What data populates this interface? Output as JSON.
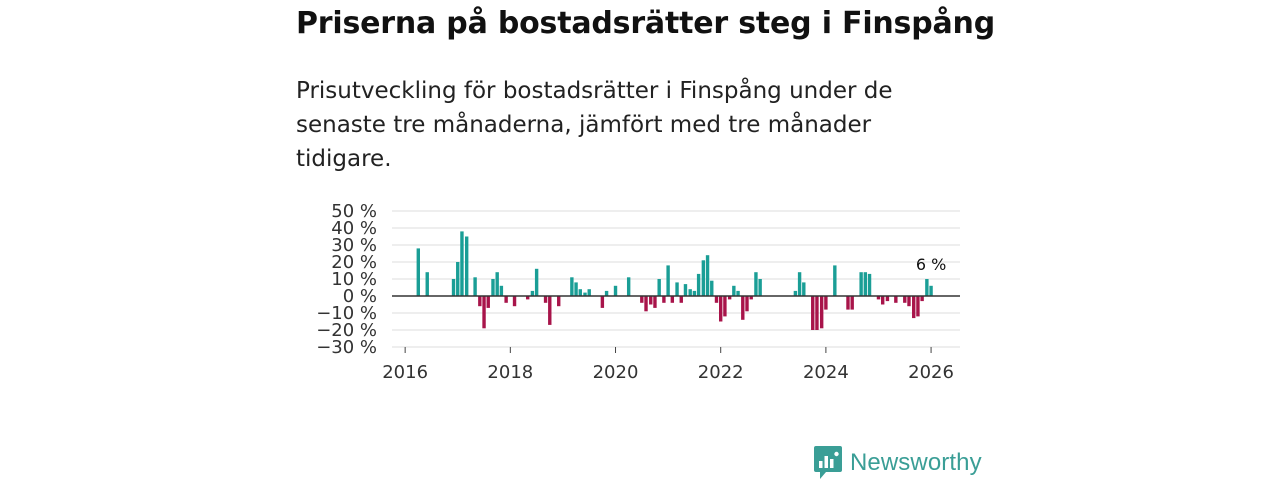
{
  "header": {
    "title": "Priserna på bostadsrätter steg i Finspång",
    "subtitle": "Prisutveckling för bostadsrätter i Finspång under de senaste tre månaderna, jämfört med tre månader tidigare."
  },
  "branding": {
    "logo_text": "Newsworthy",
    "logo_color": "#3a9e96"
  },
  "colors": {
    "positive": "#1a9e96",
    "negative": "#a8144a",
    "grid": "#dddddd",
    "zero_line": "#333333"
  },
  "chart_data": {
    "type": "bar",
    "title": "",
    "xlabel": "",
    "ylabel": "",
    "y_unit": " %",
    "ylim": [
      -30,
      50
    ],
    "y_ticks": [
      50,
      40,
      30,
      20,
      10,
      0,
      -10,
      -20,
      -30
    ],
    "y_tick_labels": [
      "50 %",
      "40 %",
      "30 %",
      "20 %",
      "10 %",
      "0 %",
      "−10 %",
      "−20 %",
      "−30 %"
    ],
    "x_ticks": [
      2016,
      2018,
      2020,
      2022,
      2024,
      2026
    ],
    "x_tick_labels": [
      "2016",
      "2018",
      "2020",
      "2022",
      "2024",
      "2026"
    ],
    "xlim": [
      2015.75,
      2026.55
    ],
    "series": [
      {
        "name": "Prisutveckling",
        "points": [
          {
            "x": 2016.25,
            "y": 28
          },
          {
            "x": 2016.42,
            "y": 14
          },
          {
            "x": 2016.92,
            "y": 10
          },
          {
            "x": 2017.0,
            "y": 20
          },
          {
            "x": 2017.08,
            "y": 38
          },
          {
            "x": 2017.17,
            "y": 35
          },
          {
            "x": 2017.33,
            "y": 11
          },
          {
            "x": 2017.42,
            "y": -6
          },
          {
            "x": 2017.5,
            "y": -19
          },
          {
            "x": 2017.58,
            "y": -7
          },
          {
            "x": 2017.67,
            "y": 10
          },
          {
            "x": 2017.75,
            "y": 14
          },
          {
            "x": 2017.83,
            "y": 6
          },
          {
            "x": 2017.92,
            "y": -4
          },
          {
            "x": 2018.08,
            "y": -6
          },
          {
            "x": 2018.33,
            "y": -2
          },
          {
            "x": 2018.42,
            "y": 3
          },
          {
            "x": 2018.5,
            "y": 16
          },
          {
            "x": 2018.67,
            "y": -4
          },
          {
            "x": 2018.75,
            "y": -17
          },
          {
            "x": 2018.92,
            "y": -6
          },
          {
            "x": 2019.17,
            "y": 11
          },
          {
            "x": 2019.25,
            "y": 8
          },
          {
            "x": 2019.33,
            "y": 4
          },
          {
            "x": 2019.42,
            "y": 2
          },
          {
            "x": 2019.5,
            "y": 4
          },
          {
            "x": 2019.75,
            "y": -7
          },
          {
            "x": 2019.83,
            "y": 3
          },
          {
            "x": 2020.0,
            "y": 6
          },
          {
            "x": 2020.25,
            "y": 11
          },
          {
            "x": 2020.5,
            "y": -4
          },
          {
            "x": 2020.58,
            "y": -9
          },
          {
            "x": 2020.67,
            "y": -5
          },
          {
            "x": 2020.75,
            "y": -7
          },
          {
            "x": 2020.83,
            "y": 10
          },
          {
            "x": 2020.92,
            "y": -4
          },
          {
            "x": 2021.0,
            "y": 18
          },
          {
            "x": 2021.08,
            "y": -4
          },
          {
            "x": 2021.17,
            "y": 8
          },
          {
            "x": 2021.25,
            "y": -4
          },
          {
            "x": 2021.33,
            "y": 7
          },
          {
            "x": 2021.42,
            "y": 4
          },
          {
            "x": 2021.5,
            "y": 3
          },
          {
            "x": 2021.58,
            "y": 13
          },
          {
            "x": 2021.67,
            "y": 21
          },
          {
            "x": 2021.75,
            "y": 24
          },
          {
            "x": 2021.83,
            "y": 9
          },
          {
            "x": 2021.92,
            "y": -4
          },
          {
            "x": 2022.0,
            "y": -15
          },
          {
            "x": 2022.08,
            "y": -12
          },
          {
            "x": 2022.17,
            "y": -2
          },
          {
            "x": 2022.25,
            "y": 6
          },
          {
            "x": 2022.33,
            "y": 3
          },
          {
            "x": 2022.42,
            "y": -14
          },
          {
            "x": 2022.5,
            "y": -9
          },
          {
            "x": 2022.58,
            "y": -2
          },
          {
            "x": 2022.67,
            "y": 14
          },
          {
            "x": 2022.75,
            "y": 10
          },
          {
            "x": 2023.42,
            "y": 3
          },
          {
            "x": 2023.5,
            "y": 14
          },
          {
            "x": 2023.58,
            "y": 8
          },
          {
            "x": 2023.75,
            "y": -20
          },
          {
            "x": 2023.83,
            "y": -20
          },
          {
            "x": 2023.92,
            "y": -19
          },
          {
            "x": 2024.0,
            "y": -8
          },
          {
            "x": 2024.17,
            "y": 18
          },
          {
            "x": 2024.42,
            "y": -8
          },
          {
            "x": 2024.5,
            "y": -8
          },
          {
            "x": 2024.67,
            "y": 14
          },
          {
            "x": 2024.75,
            "y": 14
          },
          {
            "x": 2024.83,
            "y": 13
          },
          {
            "x": 2025.0,
            "y": -2
          },
          {
            "x": 2025.08,
            "y": -5
          },
          {
            "x": 2025.17,
            "y": -3
          },
          {
            "x": 2025.33,
            "y": -4
          },
          {
            "x": 2025.5,
            "y": -4
          },
          {
            "x": 2025.58,
            "y": -6
          },
          {
            "x": 2025.67,
            "y": -13
          },
          {
            "x": 2025.75,
            "y": -12
          },
          {
            "x": 2025.83,
            "y": -3
          },
          {
            "x": 2025.92,
            "y": 10
          },
          {
            "x": 2026.0,
            "y": 6
          }
        ]
      }
    ],
    "annotations": [
      {
        "x": 2026.0,
        "y": 6,
        "text": "6 %"
      }
    ]
  }
}
